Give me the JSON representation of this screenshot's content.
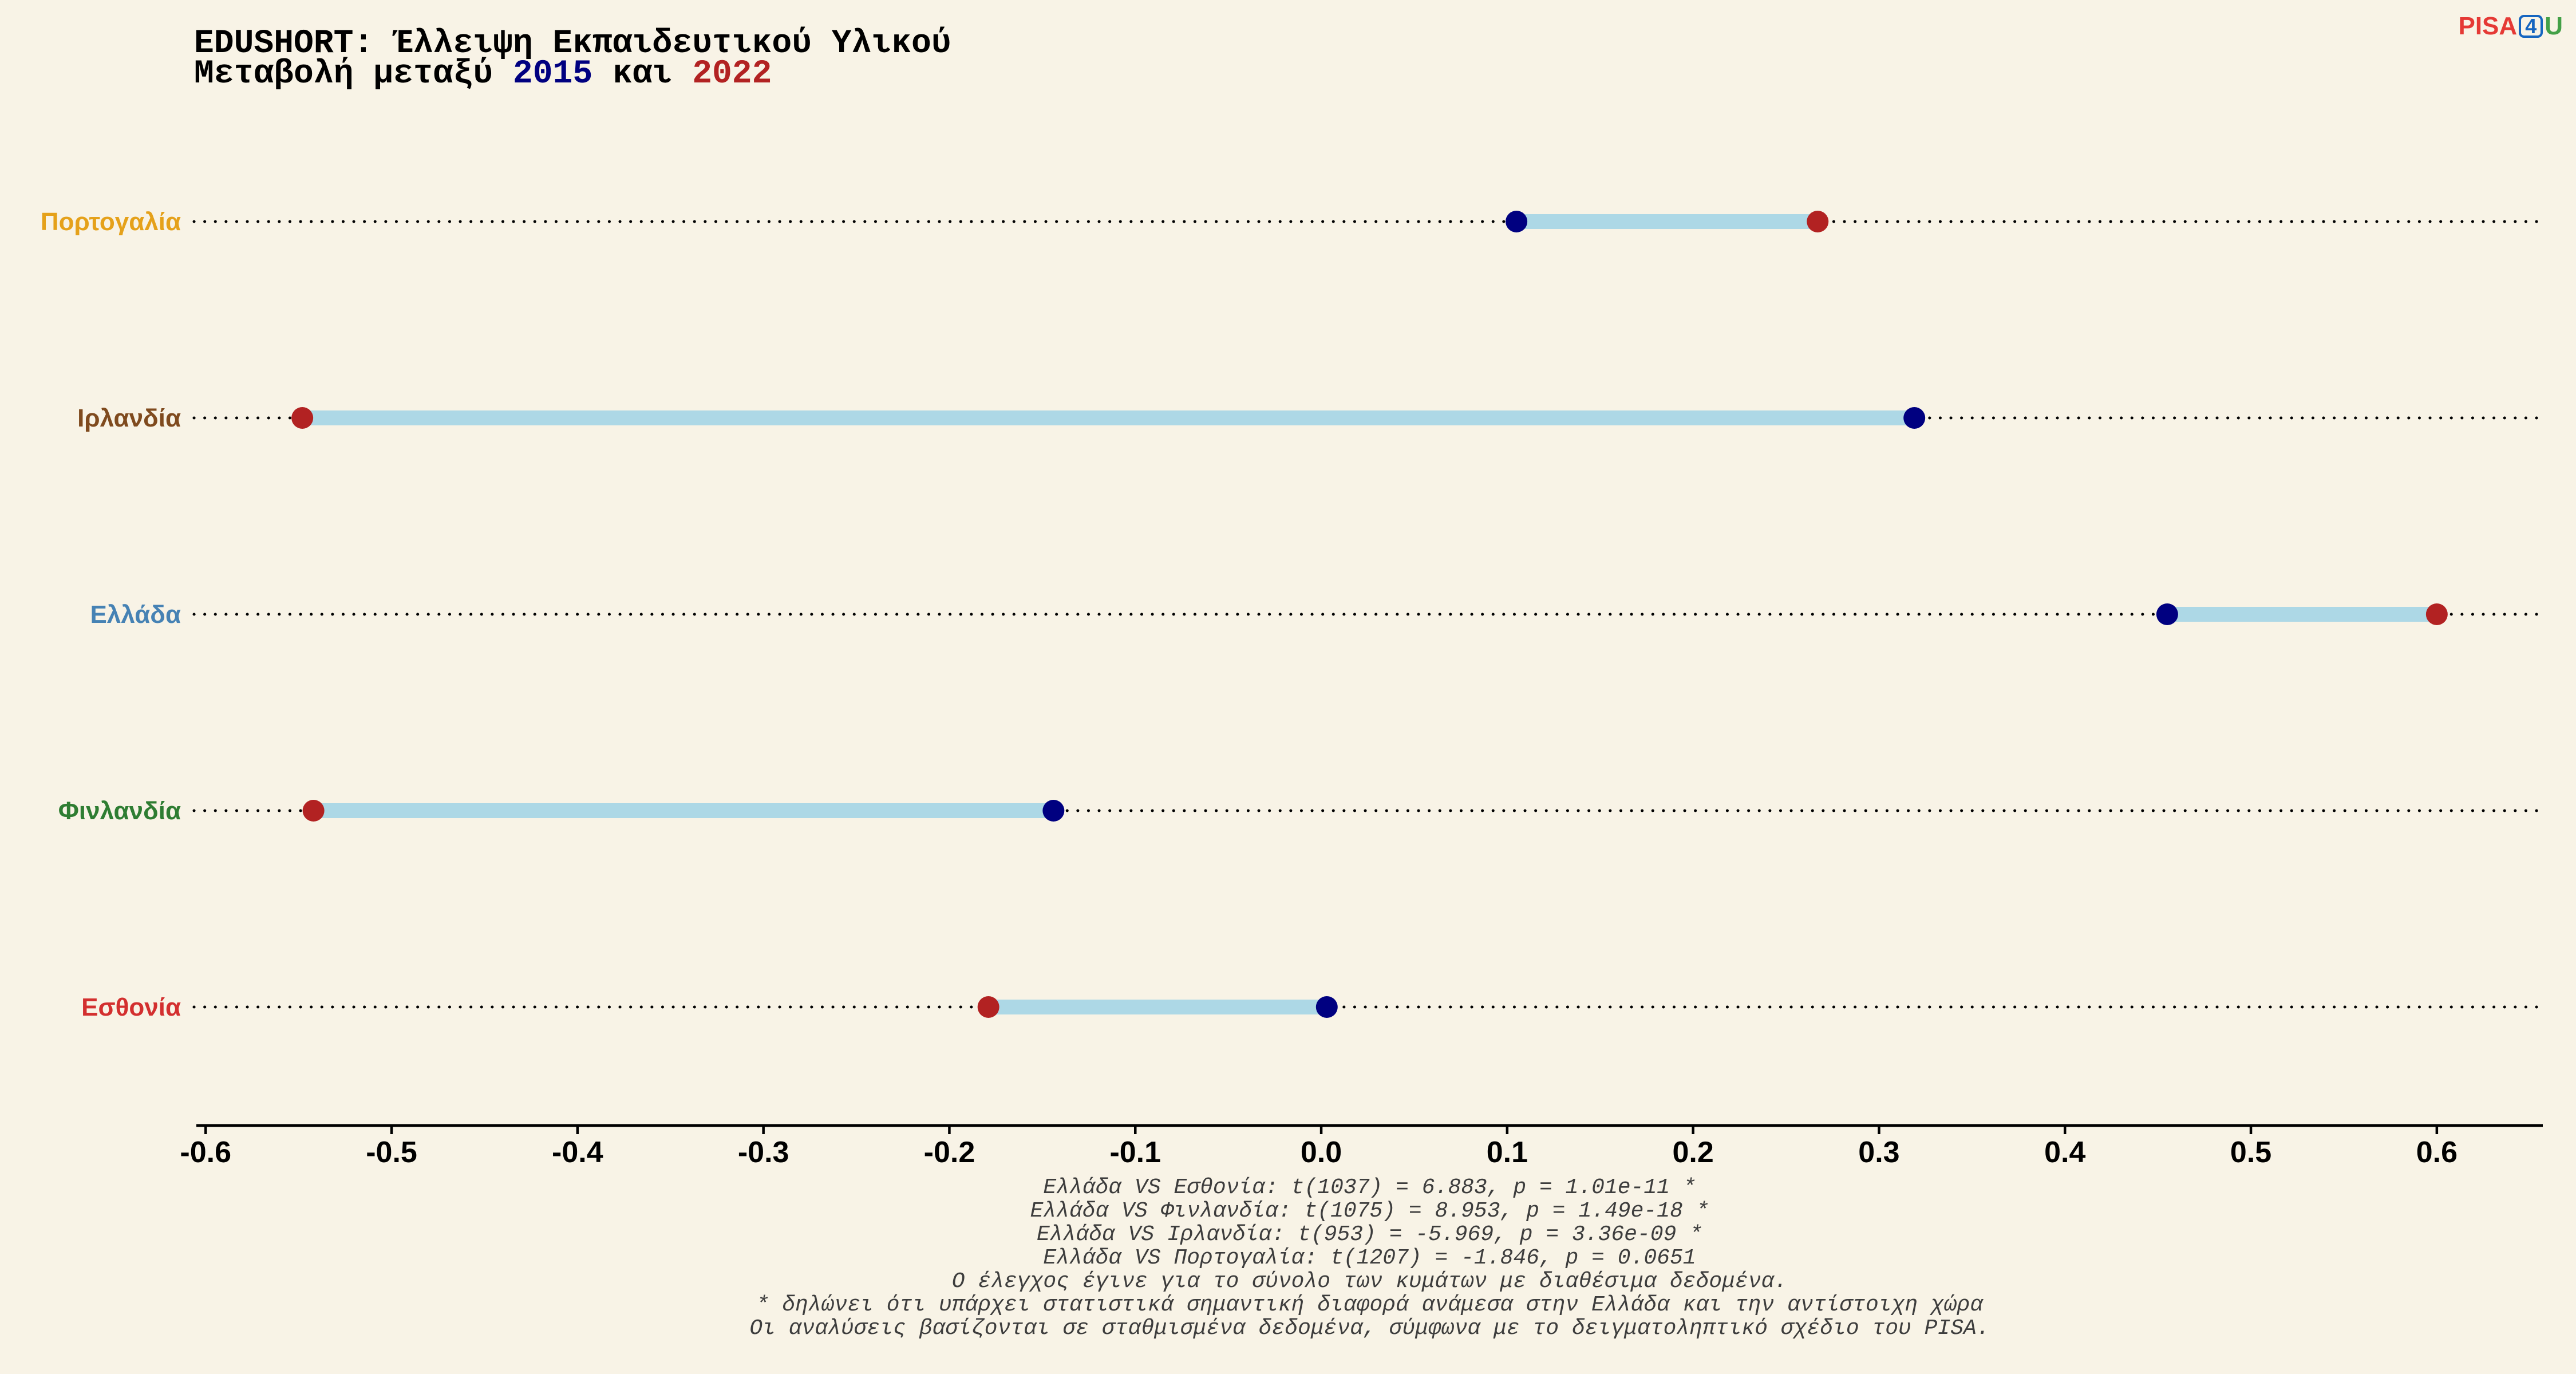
{
  "chart_data": {
    "type": "scatter",
    "title": "EDUSHORT: Έλλειψη Εκπαιδευτικού Υλικού",
    "subtitle": {
      "prefix": "Μεταβολή μεταξύ",
      "conjunction": "και"
    },
    "categories": [
      "Πορτογαλία",
      "Ιρλανδία",
      "Ελλάδα",
      "Φινλανδία",
      "Εσθονία"
    ],
    "category_colors": [
      "#E5A11A",
      "#7F4A1E",
      "#4682B4",
      "#2E7D32",
      "#D32F2F"
    ],
    "series": [
      {
        "name": "2015",
        "color": "#000080",
        "values": [
          0.105,
          0.319,
          0.455,
          -0.144,
          0.003
        ]
      },
      {
        "name": "2022",
        "color": "#B22222",
        "values": [
          0.267,
          -0.548,
          0.6,
          -0.542,
          -0.179
        ]
      }
    ],
    "segment_color": "#ADD8E6",
    "xlim": [
      -0.605,
      0.657
    ],
    "xticks": [
      -0.6,
      -0.5,
      -0.4,
      -0.3,
      -0.2,
      -0.1,
      0.0,
      0.1,
      0.2,
      0.3,
      0.4,
      0.5,
      0.6
    ],
    "xtick_labels": [
      "-0.6",
      "-0.5",
      "-0.4",
      "-0.3",
      "-0.2",
      "-0.1",
      "0.0",
      "0.1",
      "0.2",
      "0.3",
      "0.4",
      "0.5",
      "0.6"
    ],
    "grid": false
  },
  "logo": {
    "text_pisa": "PISA",
    "text_number": "4",
    "text_u": "U",
    "colors": {
      "pisa": "#E53935",
      "number": "#1565C0",
      "u": "#43A047"
    }
  },
  "footnotes": [
    "Ελλάδα VS Εσθονία: t(1037) = 6.883, p = 1.01e-11 *",
    "Ελλάδα VS Φινλανδία: t(1075) = 8.953, p = 1.49e-18 *",
    "Ελλάδα VS Ιρλανδία: t(953) = -5.969, p = 3.36e-09 *",
    "Ελλάδα VS Πορτογαλία: t(1207) = -1.846, p = 0.0651",
    "Ο έλεγχος έγινε για το σύνολο των κυμάτων με διαθέσιμα δεδομένα.",
    "* δηλώνει ότι υπάρχει στατιστικά σημαντική διαφορά ανάμεσα στην Ελλάδα και την αντίστοιχη χώρα",
    "Οι αναλύσεις βασίζονται σε σταθμισμένα δεδομένα, σύμφωνα με το δειγματοληπτικό σχέδιο του PISA."
  ]
}
